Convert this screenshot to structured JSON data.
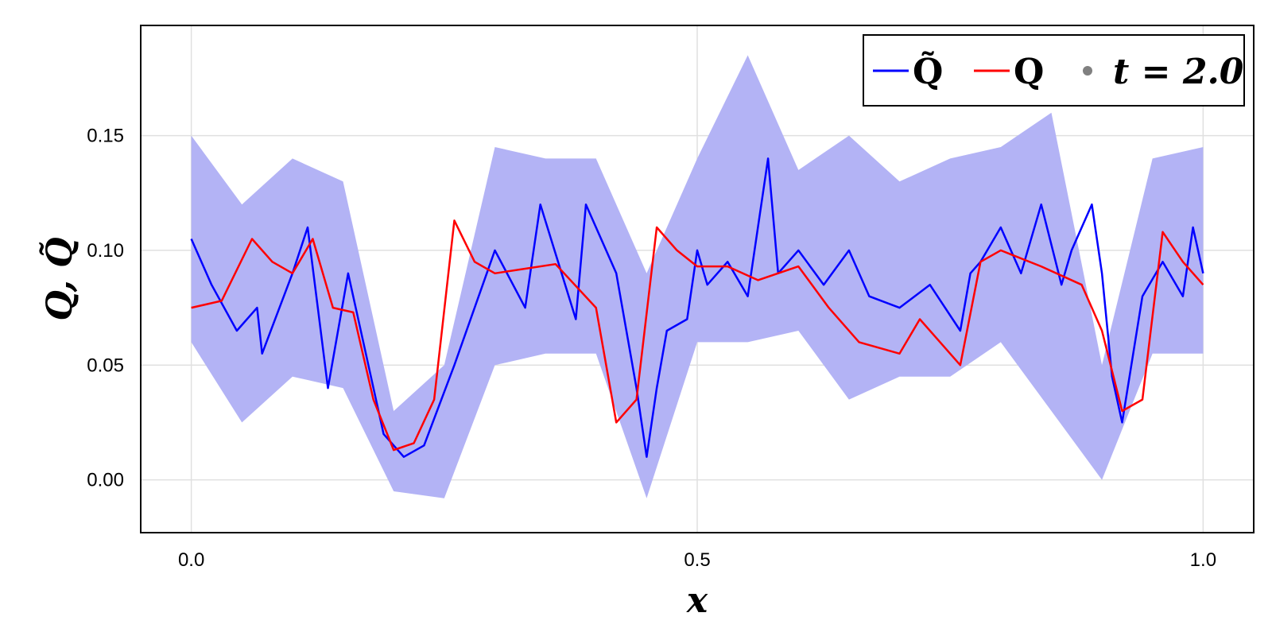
{
  "chart_data": {
    "type": "line",
    "xlabel": "x",
    "ylabel": "Q, Q̃",
    "xlim": [
      -0.05,
      1.05
    ],
    "ylim": [
      -0.023,
      0.198
    ],
    "grid": true,
    "x_ticks": [
      {
        "value": 0.0,
        "label": "0.0"
      },
      {
        "value": 0.5,
        "label": "0.5"
      },
      {
        "value": 1.0,
        "label": "1.0"
      }
    ],
    "y_ticks": [
      {
        "value": 0.0,
        "label": "0.00"
      },
      {
        "value": 0.05,
        "label": "0.05"
      },
      {
        "value": 0.1,
        "label": "0.10"
      },
      {
        "value": 0.15,
        "label": "0.15"
      }
    ],
    "legend": {
      "position": "top-right",
      "entries": [
        {
          "label": "Q̃",
          "kind": "line",
          "color": "#0000ff"
        },
        {
          "label": "Q",
          "kind": "line",
          "color": "#ff0000"
        },
        {
          "label": "t = 2.0",
          "kind": "marker",
          "color": "#808080"
        }
      ]
    },
    "band": {
      "color": "#b3b3f5",
      "x": [
        0.0,
        0.05,
        0.1,
        0.15,
        0.2,
        0.25,
        0.3,
        0.35,
        0.4,
        0.45,
        0.5,
        0.55,
        0.6,
        0.65,
        0.7,
        0.75,
        0.8,
        0.85,
        0.9,
        0.95,
        1.0
      ],
      "lower": [
        0.06,
        0.025,
        0.045,
        0.04,
        -0.005,
        -0.008,
        0.05,
        0.055,
        0.055,
        -0.008,
        0.06,
        0.06,
        0.065,
        0.035,
        0.045,
        0.045,
        0.06,
        0.03,
        0.0,
        0.055,
        0.055
      ],
      "upper": [
        0.15,
        0.12,
        0.14,
        0.13,
        0.03,
        0.05,
        0.145,
        0.14,
        0.14,
        0.09,
        0.14,
        0.185,
        0.135,
        0.15,
        0.13,
        0.14,
        0.145,
        0.16,
        0.05,
        0.14,
        0.145
      ]
    },
    "series": [
      {
        "name": "Q̃",
        "color": "#0000ff",
        "x": [
          0.0,
          0.02,
          0.045,
          0.065,
          0.07,
          0.1,
          0.115,
          0.135,
          0.155,
          0.19,
          0.21,
          0.23,
          0.26,
          0.3,
          0.33,
          0.345,
          0.38,
          0.39,
          0.42,
          0.44,
          0.45,
          0.46,
          0.47,
          0.49,
          0.5,
          0.51,
          0.53,
          0.55,
          0.57,
          0.58,
          0.6,
          0.625,
          0.65,
          0.67,
          0.7,
          0.73,
          0.76,
          0.77,
          0.78,
          0.8,
          0.82,
          0.84,
          0.86,
          0.87,
          0.89,
          0.9,
          0.91,
          0.92,
          0.94,
          0.96,
          0.98,
          0.99,
          1.0
        ],
        "y": [
          0.105,
          0.085,
          0.065,
          0.075,
          0.055,
          0.09,
          0.11,
          0.04,
          0.09,
          0.02,
          0.01,
          0.015,
          0.05,
          0.1,
          0.075,
          0.12,
          0.07,
          0.12,
          0.09,
          0.04,
          0.01,
          0.04,
          0.065,
          0.07,
          0.1,
          0.085,
          0.095,
          0.08,
          0.14,
          0.09,
          0.1,
          0.085,
          0.1,
          0.08,
          0.075,
          0.085,
          0.065,
          0.09,
          0.095,
          0.11,
          0.09,
          0.12,
          0.085,
          0.1,
          0.12,
          0.09,
          0.045,
          0.025,
          0.08,
          0.095,
          0.08,
          0.11,
          0.09
        ]
      },
      {
        "name": "Q",
        "color": "#ff0000",
        "x": [
          0.0,
          0.03,
          0.06,
          0.08,
          0.1,
          0.12,
          0.14,
          0.16,
          0.18,
          0.2,
          0.22,
          0.24,
          0.26,
          0.28,
          0.3,
          0.33,
          0.36,
          0.4,
          0.42,
          0.44,
          0.46,
          0.48,
          0.5,
          0.53,
          0.56,
          0.6,
          0.63,
          0.66,
          0.7,
          0.72,
          0.74,
          0.76,
          0.78,
          0.8,
          0.84,
          0.88,
          0.9,
          0.92,
          0.94,
          0.96,
          0.98,
          1.0
        ],
        "y": [
          0.075,
          0.078,
          0.105,
          0.095,
          0.09,
          0.105,
          0.075,
          0.073,
          0.035,
          0.013,
          0.016,
          0.035,
          0.113,
          0.095,
          0.09,
          0.092,
          0.094,
          0.075,
          0.025,
          0.035,
          0.11,
          0.1,
          0.093,
          0.093,
          0.087,
          0.093,
          0.075,
          0.06,
          0.055,
          0.07,
          0.06,
          0.05,
          0.095,
          0.1,
          0.093,
          0.085,
          0.065,
          0.03,
          0.035,
          0.108,
          0.095,
          0.085
        ]
      }
    ]
  }
}
